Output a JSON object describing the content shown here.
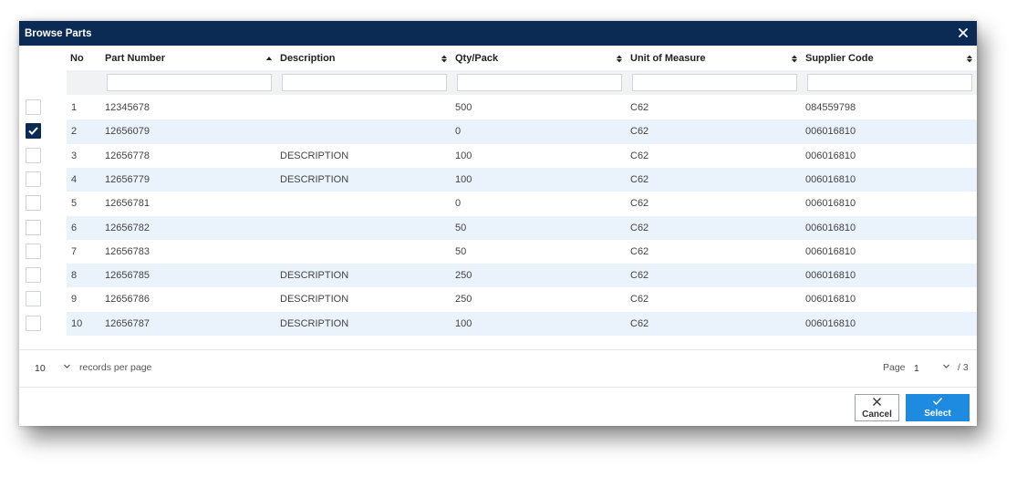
{
  "dialog": {
    "title": "Browse Parts"
  },
  "columns": [
    {
      "key": "no",
      "label": "No"
    },
    {
      "key": "part_number",
      "label": "Part Number",
      "sort": "asc"
    },
    {
      "key": "description",
      "label": "Description",
      "sort": "both"
    },
    {
      "key": "qty_pack",
      "label": "Qty/Pack",
      "sort": "both"
    },
    {
      "key": "uom",
      "label": "Unit of Measure",
      "sort": "both"
    },
    {
      "key": "supplier_code",
      "label": "Supplier Code",
      "sort": "both"
    }
  ],
  "filters": {
    "part_number": "",
    "description": "",
    "qty_pack": "",
    "uom": "",
    "supplier_code": ""
  },
  "rows": [
    {
      "checked": false,
      "no": "1",
      "part_number": "12345678",
      "description": "",
      "qty_pack": "500",
      "uom": "C62",
      "supplier_code": "084559798"
    },
    {
      "checked": true,
      "no": "2",
      "part_number": "12656079",
      "description": "",
      "qty_pack": "0",
      "uom": "C62",
      "supplier_code": "006016810"
    },
    {
      "checked": false,
      "no": "3",
      "part_number": "12656778",
      "description": "DESCRIPTION",
      "qty_pack": "100",
      "uom": "C62",
      "supplier_code": "006016810"
    },
    {
      "checked": false,
      "no": "4",
      "part_number": "12656779",
      "description": "DESCRIPTION",
      "qty_pack": "100",
      "uom": "C62",
      "supplier_code": "006016810"
    },
    {
      "checked": false,
      "no": "5",
      "part_number": "12656781",
      "description": "",
      "qty_pack": "0",
      "uom": "C62",
      "supplier_code": "006016810"
    },
    {
      "checked": false,
      "no": "6",
      "part_number": "12656782",
      "description": "",
      "qty_pack": "50",
      "uom": "C62",
      "supplier_code": "006016810"
    },
    {
      "checked": false,
      "no": "7",
      "part_number": "12656783",
      "description": "",
      "qty_pack": "50",
      "uom": "C62",
      "supplier_code": "006016810"
    },
    {
      "checked": false,
      "no": "8",
      "part_number": "12656785",
      "description": "DESCRIPTION",
      "qty_pack": "250",
      "uom": "C62",
      "supplier_code": "006016810"
    },
    {
      "checked": false,
      "no": "9",
      "part_number": "12656786",
      "description": "DESCRIPTION",
      "qty_pack": "250",
      "uom": "C62",
      "supplier_code": "006016810"
    },
    {
      "checked": false,
      "no": "10",
      "part_number": "12656787",
      "description": "DESCRIPTION",
      "qty_pack": "100",
      "uom": "C62",
      "supplier_code": "006016810"
    }
  ],
  "pagination": {
    "page_size": "10",
    "per_page_label": "records per page",
    "page_label": "Page",
    "current_page": "1",
    "total_pages_label": "/ 3"
  },
  "actions": {
    "cancel_label": "Cancel",
    "select_label": "Select"
  },
  "colors": {
    "titlebar": "#0b2a54",
    "alt_row": "#eaf2fb",
    "primary": "#1e8be0"
  },
  "icons": {
    "close": "close-icon",
    "sort_asc": "sort-asc-icon",
    "sort_both": "sort-both-icon",
    "check": "check-icon",
    "chevron": "chevron-down-icon"
  }
}
